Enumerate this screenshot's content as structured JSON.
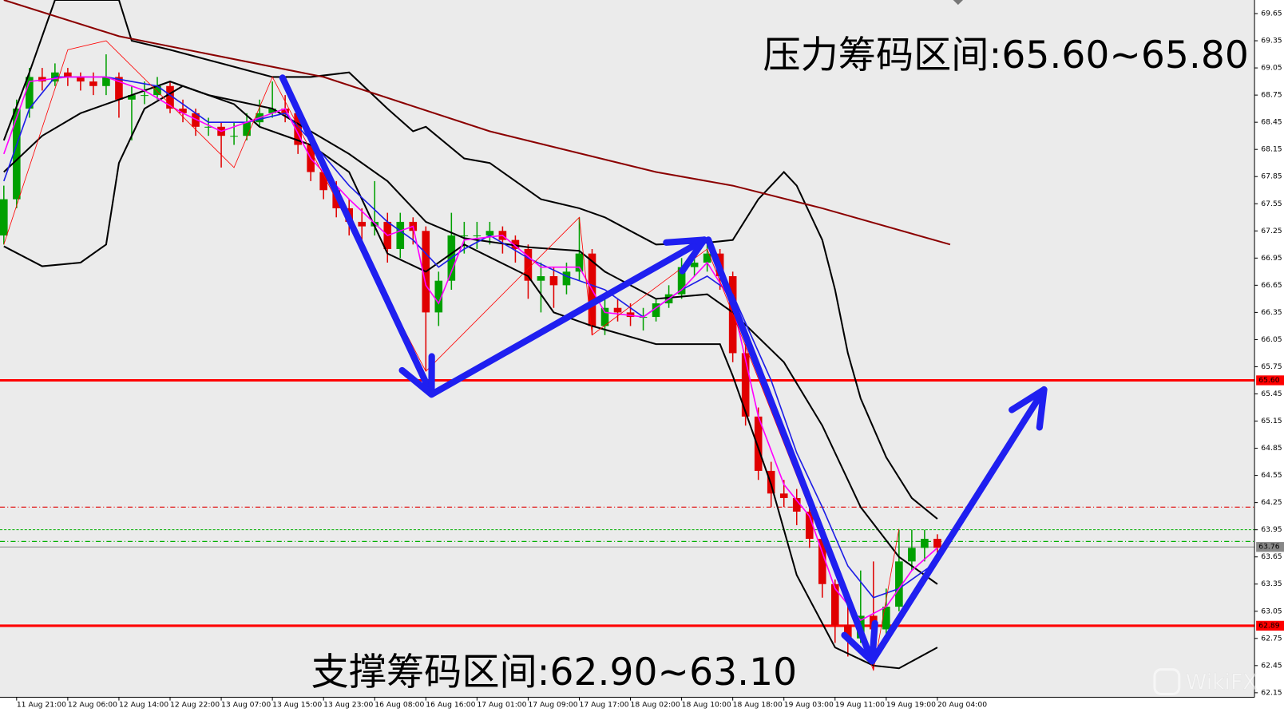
{
  "chart_data": {
    "type": "candlestick",
    "xlim": [
      -0.3,
      97.8
    ],
    "ylim": [
      62.1,
      69.8
    ],
    "candle_colors": {
      "up": "#00a000",
      "down": "#e00000"
    },
    "ohlc": [
      [
        67.2,
        67.75,
        67.1,
        67.6
      ],
      [
        67.6,
        68.7,
        67.5,
        68.6
      ],
      [
        68.6,
        69.05,
        68.5,
        68.95
      ],
      [
        68.95,
        69.05,
        68.8,
        68.9
      ],
      [
        68.9,
        69.1,
        68.85,
        69.0
      ],
      [
        69.0,
        69.05,
        68.85,
        68.95
      ],
      [
        68.95,
        69.0,
        68.8,
        68.9
      ],
      [
        68.9,
        69.0,
        68.75,
        68.85
      ],
      [
        68.85,
        69.2,
        68.75,
        68.95
      ],
      [
        68.95,
        69.0,
        68.5,
        68.7
      ],
      [
        68.7,
        68.85,
        68.25,
        68.75
      ],
      [
        68.75,
        68.9,
        68.65,
        68.75
      ],
      [
        68.75,
        68.95,
        68.7,
        68.85
      ],
      [
        68.85,
        68.9,
        68.55,
        68.6
      ],
      [
        68.6,
        68.7,
        68.45,
        68.55
      ],
      [
        68.55,
        68.6,
        68.3,
        68.4
      ],
      [
        68.4,
        68.5,
        68.3,
        68.4
      ],
      [
        68.4,
        68.45,
        67.95,
        68.3
      ],
      [
        68.3,
        68.45,
        68.2,
        68.3
      ],
      [
        68.3,
        68.55,
        68.25,
        68.45
      ],
      [
        68.45,
        68.7,
        68.4,
        68.55
      ],
      [
        68.55,
        68.9,
        68.5,
        68.6
      ],
      [
        68.6,
        68.75,
        68.45,
        68.55
      ],
      [
        68.55,
        68.6,
        68.1,
        68.2
      ],
      [
        68.2,
        68.3,
        67.8,
        67.9
      ],
      [
        67.9,
        68.0,
        67.6,
        67.7
      ],
      [
        67.7,
        67.8,
        67.4,
        67.5
      ],
      [
        67.5,
        67.6,
        67.2,
        67.35
      ],
      [
        67.35,
        67.5,
        67.1,
        67.3
      ],
      [
        67.3,
        67.8,
        67.2,
        67.35
      ],
      [
        67.35,
        67.45,
        66.9,
        67.05
      ],
      [
        67.05,
        67.45,
        66.95,
        67.35
      ],
      [
        67.35,
        67.4,
        67.1,
        67.25
      ],
      [
        67.25,
        67.3,
        65.7,
        66.35
      ],
      [
        66.35,
        66.8,
        66.2,
        66.7
      ],
      [
        66.7,
        67.45,
        66.6,
        67.2
      ],
      [
        67.2,
        67.35,
        67.0,
        67.2
      ],
      [
        67.2,
        67.35,
        67.05,
        67.2
      ],
      [
        67.2,
        67.35,
        67.1,
        67.25
      ],
      [
        67.25,
        67.3,
        67.0,
        67.15
      ],
      [
        67.15,
        67.2,
        66.9,
        67.05
      ],
      [
        67.05,
        67.1,
        66.5,
        66.7
      ],
      [
        66.7,
        66.9,
        66.35,
        66.75
      ],
      [
        66.75,
        66.85,
        66.4,
        66.65
      ],
      [
        66.65,
        66.9,
        66.55,
        66.8
      ],
      [
        66.8,
        67.4,
        66.7,
        67.0
      ],
      [
        67.0,
        67.05,
        66.1,
        66.2
      ],
      [
        66.2,
        66.5,
        66.1,
        66.4
      ],
      [
        66.4,
        66.5,
        66.25,
        66.35
      ],
      [
        66.35,
        66.45,
        66.2,
        66.3
      ],
      [
        66.3,
        66.4,
        66.15,
        66.3
      ],
      [
        66.3,
        66.5,
        66.25,
        66.45
      ],
      [
        66.45,
        66.65,
        66.4,
        66.55
      ],
      [
        66.55,
        66.95,
        66.5,
        66.85
      ],
      [
        66.85,
        67.0,
        66.75,
        66.9
      ],
      [
        66.9,
        67.1,
        66.8,
        67.0
      ],
      [
        67.0,
        67.05,
        66.6,
        66.75
      ],
      [
        66.75,
        66.8,
        65.8,
        65.9
      ],
      [
        65.9,
        66.0,
        65.1,
        65.2
      ],
      [
        65.2,
        65.3,
        64.5,
        64.6
      ],
      [
        64.6,
        64.7,
        64.2,
        64.35
      ],
      [
        64.35,
        64.5,
        64.2,
        64.3
      ],
      [
        64.3,
        64.4,
        64.0,
        64.15
      ],
      [
        64.15,
        64.2,
        63.75,
        63.85
      ],
      [
        63.85,
        63.9,
        63.2,
        63.35
      ],
      [
        63.35,
        63.4,
        62.7,
        62.9
      ],
      [
        62.9,
        63.2,
        62.55,
        62.75
      ],
      [
        62.75,
        63.5,
        62.7,
        63.0
      ],
      [
        63.0,
        63.6,
        62.4,
        62.85
      ],
      [
        62.85,
        63.3,
        62.75,
        63.1
      ],
      [
        63.1,
        63.95,
        63.05,
        63.6
      ],
      [
        63.6,
        63.95,
        63.5,
        63.75
      ],
      [
        63.75,
        63.95,
        63.6,
        63.85
      ],
      [
        63.85,
        63.9,
        63.65,
        63.75
      ]
    ],
    "overlays": [
      {
        "color": "#000000",
        "width": 2,
        "x": [
          0,
          2,
          4,
          9,
          10,
          13,
          17,
          21,
          24,
          27,
          30,
          32,
          33,
          36,
          38,
          42,
          45,
          47,
          51,
          55,
          57,
          59,
          61,
          62,
          64,
          65,
          66,
          67,
          69,
          71,
          73
        ],
        "values": [
          68.25,
          69.0,
          69.8,
          69.8,
          69.35,
          69.25,
          69.1,
          68.95,
          68.95,
          69.0,
          68.6,
          68.35,
          68.4,
          68.05,
          68.0,
          67.6,
          67.5,
          67.4,
          67.1,
          67.12,
          67.15,
          67.6,
          67.9,
          67.75,
          67.15,
          66.6,
          65.9,
          65.4,
          64.75,
          64.3,
          64.07
        ]
      },
      {
        "color": "#000000",
        "width": 2,
        "x": [
          0,
          3,
          6,
          13,
          16,
          21,
          24,
          27,
          30,
          33,
          36,
          41,
          45,
          47,
          51,
          55,
          57,
          61,
          64,
          67,
          70,
          73
        ],
        "values": [
          67.9,
          68.3,
          68.55,
          68.9,
          68.75,
          68.6,
          68.35,
          68.1,
          67.8,
          67.35,
          67.17,
          67.07,
          67.03,
          66.8,
          66.5,
          66.55,
          66.35,
          65.8,
          65.1,
          64.2,
          63.65,
          63.35
        ]
      },
      {
        "color": "#000000",
        "width": 2,
        "x": [
          0,
          3,
          6,
          8,
          9,
          11,
          14,
          18,
          20,
          24,
          27,
          30,
          33,
          36,
          41,
          43,
          46,
          51,
          56,
          57,
          60,
          62,
          65,
          68,
          70,
          73
        ],
        "values": [
          67.08,
          66.86,
          66.9,
          67.1,
          68.0,
          68.6,
          68.85,
          68.65,
          68.4,
          68.2,
          67.9,
          67.0,
          66.8,
          67.1,
          66.75,
          66.35,
          66.2,
          66.0,
          66.0,
          65.65,
          64.45,
          63.45,
          62.65,
          62.45,
          62.42,
          62.65
        ]
      },
      {
        "color": "#8b0000",
        "width": 2,
        "x": [
          0,
          9,
          25,
          38,
          51,
          57,
          64,
          74
        ],
        "values": [
          69.8,
          69.4,
          68.95,
          68.35,
          67.9,
          67.75,
          67.5,
          67.1
        ]
      },
      {
        "color": "#1e1ee6",
        "width": 1.6,
        "x": [
          0,
          2,
          4,
          8,
          12,
          16,
          19,
          22,
          24,
          27,
          30,
          32,
          34,
          36,
          38,
          41,
          44,
          47,
          50,
          53,
          55,
          57,
          60,
          62,
          64,
          66,
          68,
          70,
          73
        ],
        "values": [
          67.8,
          68.6,
          68.95,
          68.95,
          68.85,
          68.45,
          68.45,
          68.55,
          68.25,
          67.75,
          67.35,
          67.15,
          66.85,
          67.05,
          67.2,
          66.95,
          66.75,
          66.6,
          66.3,
          66.6,
          66.75,
          66.55,
          65.6,
          64.8,
          64.2,
          63.55,
          63.2,
          63.3,
          63.6
        ]
      },
      {
        "color": "#ff00ff",
        "width": 1.6,
        "x": [
          0,
          2,
          5,
          8,
          11,
          14,
          17,
          20,
          22,
          24,
          27,
          30,
          32,
          33,
          34,
          36,
          39,
          42,
          45,
          47,
          50,
          53,
          55,
          57,
          59,
          61,
          63,
          65,
          67,
          69,
          71,
          73
        ],
        "values": [
          68.1,
          68.9,
          68.95,
          68.95,
          68.8,
          68.55,
          68.35,
          68.5,
          68.6,
          68.05,
          67.6,
          67.2,
          67.3,
          66.65,
          66.45,
          67.15,
          67.2,
          66.85,
          66.85,
          66.35,
          66.3,
          66.6,
          66.9,
          66.45,
          65.2,
          64.45,
          64.1,
          63.3,
          62.95,
          63.1,
          63.5,
          63.75
        ]
      },
      {
        "color": "#ff0000",
        "width": 0.8,
        "x": [
          0,
          5,
          8,
          18,
          21,
          33,
          45,
          46,
          55,
          68,
          70
        ],
        "values": [
          67.1,
          69.25,
          69.35,
          67.95,
          68.95,
          65.7,
          67.4,
          66.1,
          67.05,
          62.4,
          63.96
        ]
      }
    ],
    "levels": [
      {
        "value": 65.6,
        "label": "65.60",
        "color": "#ff0000",
        "width": 3,
        "dash": "none"
      },
      {
        "value": 62.89,
        "label": "62.89",
        "color": "#ff0000",
        "width": 3,
        "dash": "none"
      },
      {
        "value": 64.2,
        "color": "#e00000",
        "width": 1,
        "dash": "6 3 1 3"
      },
      {
        "value": 63.95,
        "color": "#00b000",
        "width": 1,
        "dash": "3 2"
      },
      {
        "value": 63.82,
        "color": "#00b000",
        "width": 1.2,
        "dash": "6 3 1 3"
      },
      {
        "value": 63.76,
        "label": "63.76",
        "color": "#888888",
        "width": 1,
        "dash": "none"
      }
    ],
    "yticks": [
      69.65,
      69.35,
      69.05,
      68.75,
      68.45,
      68.15,
      67.85,
      67.55,
      67.25,
      66.95,
      66.65,
      66.35,
      66.05,
      65.75,
      65.45,
      65.15,
      64.85,
      64.55,
      64.25,
      63.95,
      63.65,
      63.35,
      63.05,
      62.75,
      62.45,
      62.15
    ],
    "xticks": [
      {
        "value": 1,
        "label": "11 Aug 21:00"
      },
      {
        "value": 5,
        "label": "12 Aug 06:00"
      },
      {
        "value": 9,
        "label": "12 Aug 14:00"
      },
      {
        "value": 13,
        "label": "12 Aug 22:00"
      },
      {
        "value": 17,
        "label": "13 Aug 07:00"
      },
      {
        "value": 21,
        "label": "13 Aug 15:00"
      },
      {
        "value": 25,
        "label": "13 Aug 23:00"
      },
      {
        "value": 29,
        "label": "16 Aug 08:00"
      },
      {
        "value": 33,
        "label": "16 Aug 16:00"
      },
      {
        "value": 37,
        "label": "17 Aug 01:00"
      },
      {
        "value": 41,
        "label": "17 Aug 09:00"
      },
      {
        "value": 45,
        "label": "17 Aug 17:00"
      },
      {
        "value": 49,
        "label": "18 Aug 02:00"
      },
      {
        "value": 53,
        "label": "18 Aug 10:00"
      },
      {
        "value": 57,
        "label": "18 Aug 18:00"
      },
      {
        "value": 61,
        "label": "19 Aug 03:00"
      },
      {
        "value": 65,
        "label": "19 Aug 11:00"
      },
      {
        "value": 69,
        "label": "19 Aug 19:00"
      },
      {
        "value": 73,
        "label": "20 Aug 04:00"
      }
    ],
    "annotations": [
      "压力筹码区间:65.60~65.80",
      "支撑筹码区间:62.90~63.10"
    ],
    "watermark": "WikiFX"
  }
}
